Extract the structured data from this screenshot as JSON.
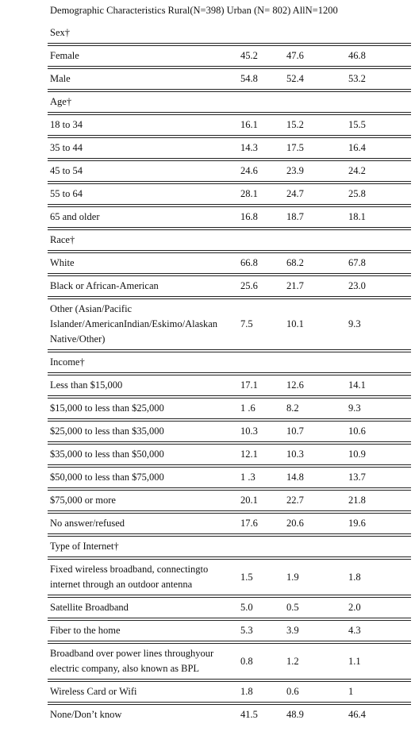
{
  "header": {
    "title": "Demographic Characteristics Rural(N=398) Urban (N= 802) AllN=1200"
  },
  "sections": [
    {
      "title": "Sex†",
      "rows": [
        [
          "Female",
          "45.2",
          "47.6",
          "46.8"
        ],
        [
          "Male",
          "54.8",
          "52.4",
          "53.2"
        ]
      ]
    },
    {
      "title": "Age†",
      "rows": [
        [
          "18 to 34",
          "16.1",
          "15.2",
          "15.5"
        ],
        [
          "35 to 44",
          "14.3",
          "17.5",
          "16.4"
        ],
        [
          "45 to 54",
          "24.6",
          "23.9",
          "24.2"
        ],
        [
          "55 to 64",
          "28.1",
          "24.7",
          "25.8"
        ],
        [
          "65 and older",
          "16.8",
          "18.7",
          "18.1"
        ]
      ]
    },
    {
      "title": "Race†",
      "rows": [
        [
          "White",
          "66.8",
          "68.2",
          "67.8"
        ],
        [
          "Black or African-American",
          "25.6",
          "21.7",
          "23.0"
        ],
        [
          "Other (Asian/Pacific Islander/AmericanIndian/Eskimo/Alaskan Native/Other)",
          "7.5",
          "10.1",
          "9.3"
        ]
      ]
    },
    {
      "title": "Income†",
      "rows": [
        [
          "Less than $15,000",
          "17.1",
          "12.6",
          "14.1"
        ],
        [
          "$15,000 to less than $25,000",
          "1 .6",
          "8.2",
          "9.3"
        ],
        [
          "$25,000 to less than $35,000",
          "10.3",
          "10.7",
          "10.6"
        ],
        [
          "$35,000 to less than $50,000",
          "12.1",
          "10.3",
          "10.9"
        ],
        [
          "$50,000 to less than $75,000",
          "1 .3",
          "14.8",
          "13.7"
        ],
        [
          "$75,000 or more",
          "20.1",
          "22.7",
          "21.8"
        ],
        [
          "No answer/refused",
          "17.6",
          "20.6",
          "19.6"
        ]
      ]
    },
    {
      "title": "Type of Internet†",
      "rows": [
        [
          "Fixed wireless broadband, connectingto internet through an outdoor antenna",
          "1.5",
          "1.9",
          "1.8"
        ],
        [
          "Satellite Broadband",
          "5.0",
          "0.5",
          "2.0"
        ],
        [
          "Fiber to the home",
          "5.3",
          "3.9",
          "4.3"
        ],
        [
          "Broadband over power lines throughyour electric company, also known as BPL",
          "0.8",
          "1.2",
          "1.1"
        ],
        [
          "Wireless Card or Wifi",
          "1.8",
          "0.6",
          "1"
        ],
        [
          "None/Don’t know",
          "41.5",
          "48.9",
          "46.4"
        ]
      ]
    }
  ]
}
